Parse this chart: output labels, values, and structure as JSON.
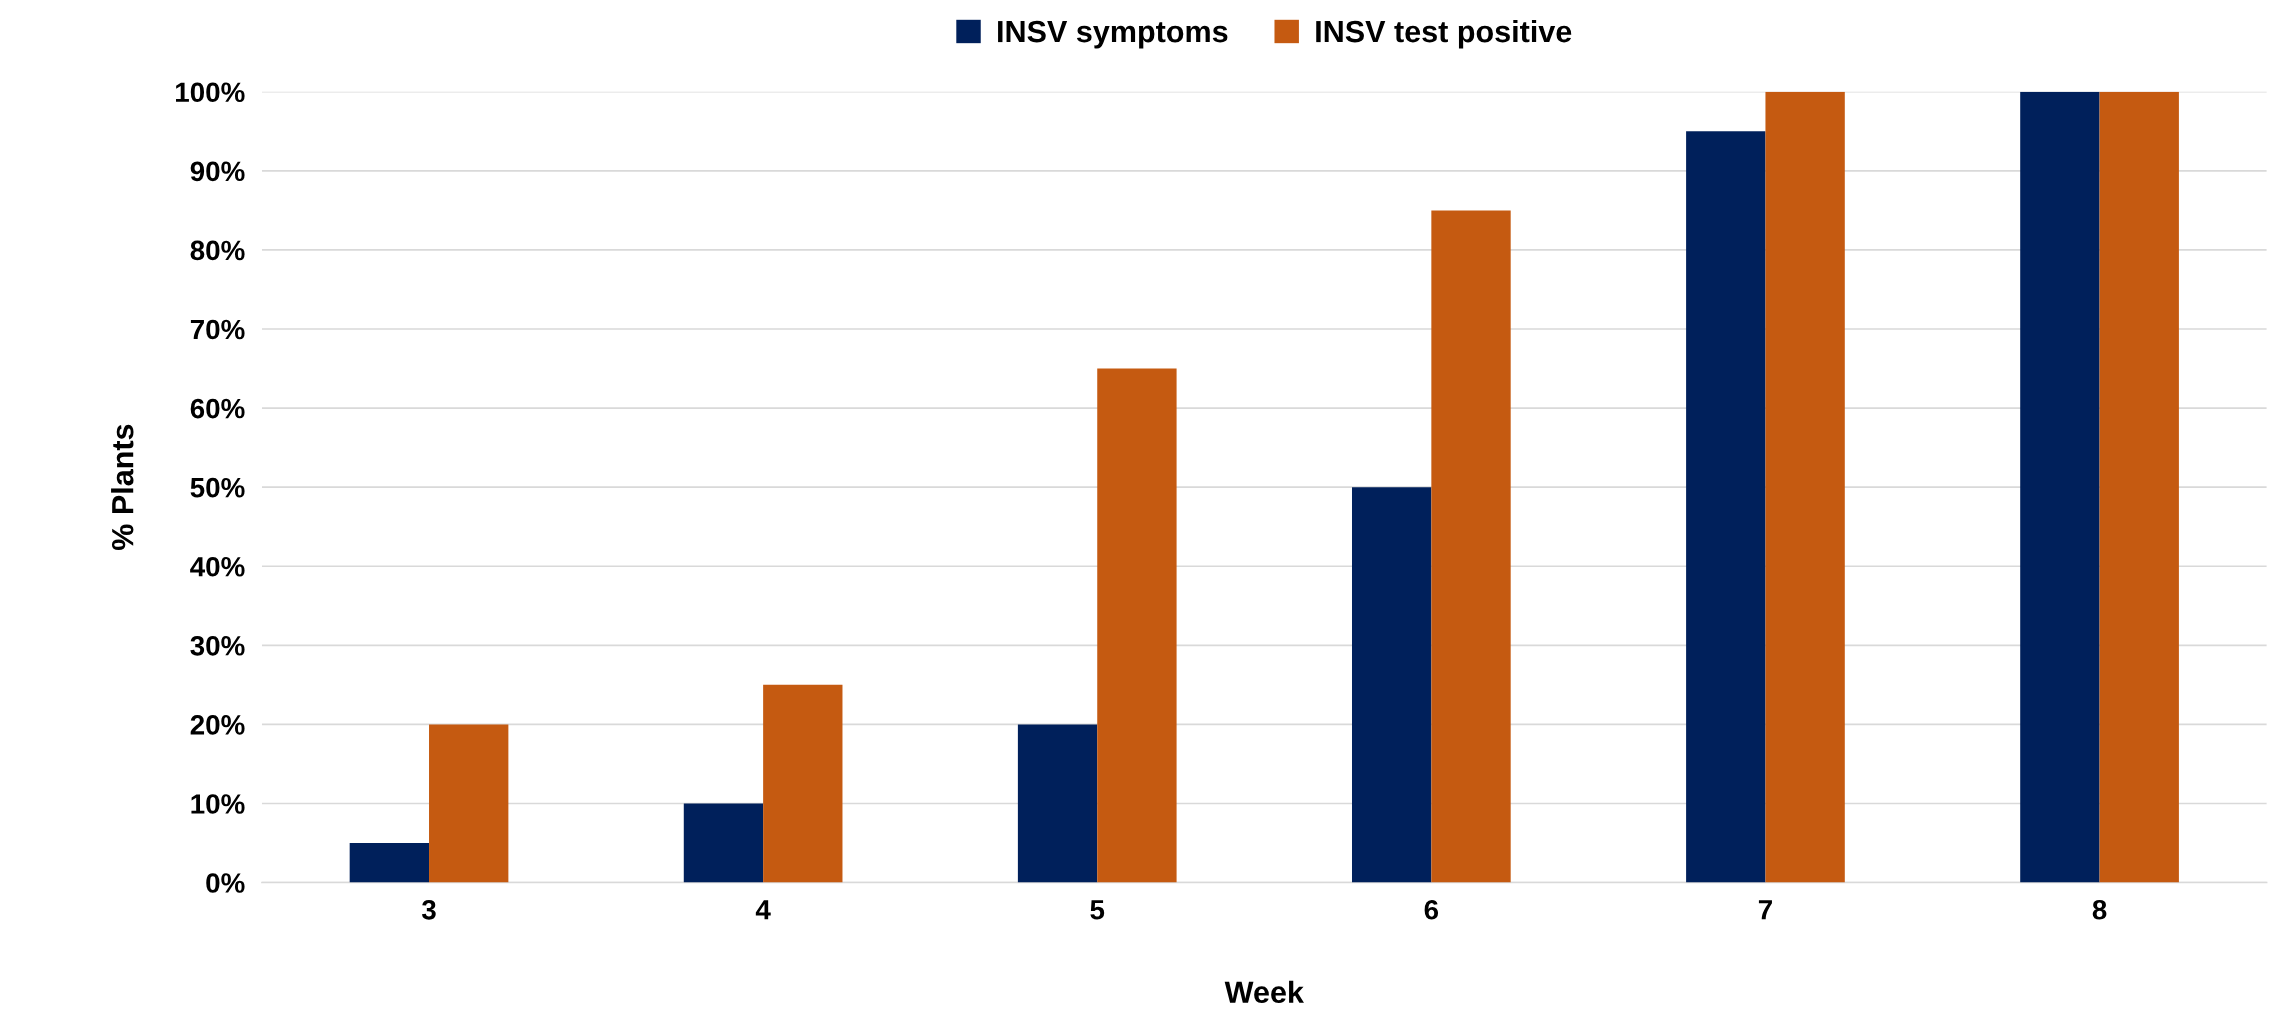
{
  "chart_data": {
    "type": "bar",
    "xlabel": "Week",
    "ylabel": "% Plants",
    "categories": [
      "3",
      "4",
      "5",
      "6",
      "7",
      "8"
    ],
    "series": [
      {
        "name": "INSV symptoms",
        "color": "#00205b",
        "values": [
          5,
          10,
          20,
          50,
          95,
          100
        ]
      },
      {
        "name": "INSV test positive",
        "color": "#c55a11",
        "values": [
          20,
          25,
          65,
          85,
          100,
          100
        ]
      }
    ],
    "ylim": [
      0,
      100
    ],
    "yticks": [
      {
        "value": 0,
        "label": "0%"
      },
      {
        "value": 10,
        "label": "10%"
      },
      {
        "value": 20,
        "label": "20%"
      },
      {
        "value": 30,
        "label": "30%"
      },
      {
        "value": 40,
        "label": "40%"
      },
      {
        "value": 50,
        "label": "50%"
      },
      {
        "value": 60,
        "label": "60%"
      },
      {
        "value": 70,
        "label": "70%"
      },
      {
        "value": 80,
        "label": "80%"
      },
      {
        "value": 90,
        "label": "90%"
      },
      {
        "value": 100,
        "label": "100%"
      }
    ],
    "grid": "y",
    "legend": "top"
  }
}
